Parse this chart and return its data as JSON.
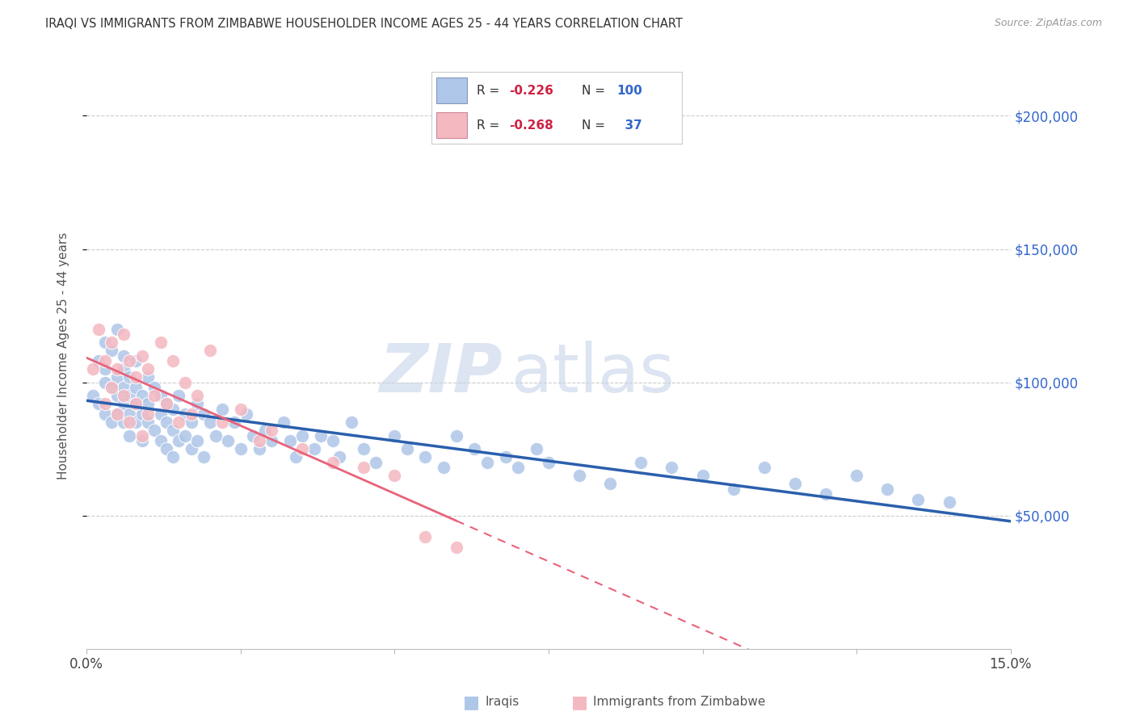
{
  "title": "IRAQI VS IMMIGRANTS FROM ZIMBABWE HOUSEHOLDER INCOME AGES 25 - 44 YEARS CORRELATION CHART",
  "source": "Source: ZipAtlas.com",
  "ylabel": "Householder Income Ages 25 - 44 years",
  "xlim": [
    0.0,
    0.15
  ],
  "ylim": [
    0,
    220000
  ],
  "ytick_values": [
    50000,
    100000,
    150000,
    200000
  ],
  "ytick_labels": [
    "$50,000",
    "$100,000",
    "$150,000",
    "$200,000"
  ],
  "r1": "-0.226",
  "n1": "100",
  "r2": "-0.268",
  "n2": "37",
  "blue_color": "#aec6e8",
  "pink_color": "#f4b8c1",
  "blue_line_color": "#2b5fad",
  "pink_line_color": "#e8637a",
  "watermark_zip_color": "#c5d5e8",
  "watermark_atlas_color": "#c5d5e8",
  "legend_label1": "Iraqis",
  "legend_label2": "Immigrants from Zimbabwe",
  "iraqis_x": [
    0.001,
    0.002,
    0.002,
    0.003,
    0.003,
    0.003,
    0.003,
    0.004,
    0.004,
    0.004,
    0.005,
    0.005,
    0.005,
    0.005,
    0.006,
    0.006,
    0.006,
    0.006,
    0.006,
    0.007,
    0.007,
    0.007,
    0.007,
    0.008,
    0.008,
    0.008,
    0.008,
    0.009,
    0.009,
    0.009,
    0.01,
    0.01,
    0.01,
    0.011,
    0.011,
    0.012,
    0.012,
    0.012,
    0.013,
    0.013,
    0.013,
    0.014,
    0.014,
    0.014,
    0.015,
    0.015,
    0.016,
    0.016,
    0.017,
    0.017,
    0.018,
    0.018,
    0.019,
    0.019,
    0.02,
    0.021,
    0.022,
    0.023,
    0.024,
    0.025,
    0.026,
    0.027,
    0.028,
    0.029,
    0.03,
    0.032,
    0.033,
    0.034,
    0.035,
    0.037,
    0.038,
    0.04,
    0.041,
    0.043,
    0.045,
    0.047,
    0.05,
    0.052,
    0.055,
    0.058,
    0.06,
    0.063,
    0.065,
    0.068,
    0.07,
    0.073,
    0.075,
    0.08,
    0.085,
    0.09,
    0.095,
    0.1,
    0.105,
    0.11,
    0.115,
    0.12,
    0.125,
    0.13,
    0.135,
    0.14
  ],
  "iraqis_y": [
    95000,
    108000,
    92000,
    100000,
    115000,
    88000,
    105000,
    98000,
    112000,
    85000,
    102000,
    95000,
    88000,
    120000,
    105000,
    92000,
    98000,
    85000,
    110000,
    95000,
    88000,
    102000,
    80000,
    98000,
    92000,
    85000,
    108000,
    95000,
    88000,
    78000,
    102000,
    92000,
    85000,
    98000,
    82000,
    95000,
    88000,
    78000,
    92000,
    85000,
    75000,
    90000,
    82000,
    72000,
    95000,
    78000,
    88000,
    80000,
    85000,
    75000,
    92000,
    78000,
    88000,
    72000,
    85000,
    80000,
    90000,
    78000,
    85000,
    75000,
    88000,
    80000,
    75000,
    82000,
    78000,
    85000,
    78000,
    72000,
    80000,
    75000,
    80000,
    78000,
    72000,
    85000,
    75000,
    70000,
    80000,
    75000,
    72000,
    68000,
    80000,
    75000,
    70000,
    72000,
    68000,
    75000,
    70000,
    65000,
    62000,
    70000,
    68000,
    65000,
    60000,
    68000,
    62000,
    58000,
    65000,
    60000,
    56000,
    55000
  ],
  "zimb_x": [
    0.001,
    0.002,
    0.003,
    0.003,
    0.004,
    0.004,
    0.005,
    0.005,
    0.006,
    0.006,
    0.007,
    0.007,
    0.008,
    0.008,
    0.009,
    0.009,
    0.01,
    0.01,
    0.011,
    0.012,
    0.013,
    0.014,
    0.015,
    0.016,
    0.017,
    0.018,
    0.02,
    0.022,
    0.025,
    0.028,
    0.03,
    0.035,
    0.04,
    0.045,
    0.05,
    0.055,
    0.06
  ],
  "zimb_y": [
    105000,
    120000,
    108000,
    92000,
    115000,
    98000,
    105000,
    88000,
    118000,
    95000,
    108000,
    85000,
    102000,
    92000,
    110000,
    80000,
    105000,
    88000,
    95000,
    115000,
    92000,
    108000,
    85000,
    100000,
    88000,
    95000,
    112000,
    85000,
    90000,
    78000,
    82000,
    75000,
    70000,
    68000,
    65000,
    42000,
    38000
  ]
}
